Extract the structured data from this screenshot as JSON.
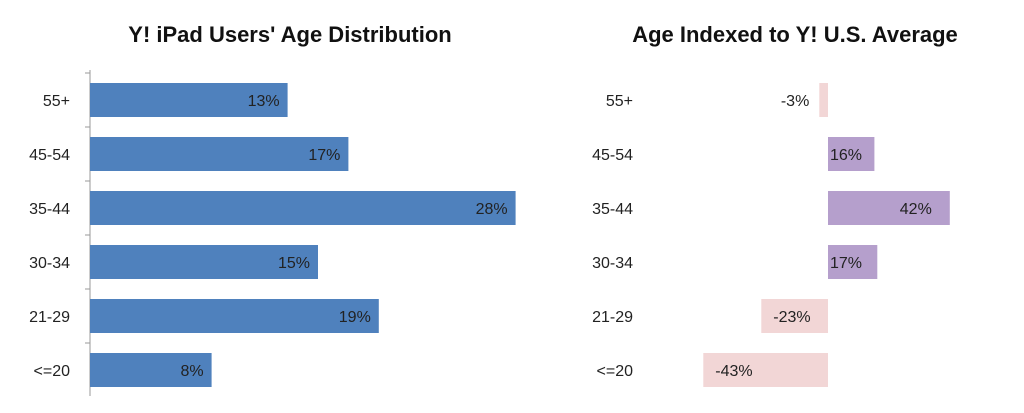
{
  "chart_data": [
    {
      "type": "bar",
      "orientation": "horizontal",
      "title": "Y! iPad Users' Age Distribution",
      "categories": [
        "55+",
        "45-54",
        "35-44",
        "30-34",
        "21-29",
        "<=20"
      ],
      "values": [
        13,
        17,
        28,
        15,
        19,
        8
      ],
      "value_labels": [
        "13%",
        "17%",
        "28%",
        "15%",
        "19%",
        "8%"
      ],
      "color": "#4F81BD"
    },
    {
      "type": "bar",
      "orientation": "horizontal",
      "title": "Age Indexed to Y! U.S. Average",
      "categories": [
        "55+",
        "45-54",
        "35-44",
        "30-34",
        "21-29",
        "<=20"
      ],
      "values": [
        -3,
        16,
        42,
        17,
        -23,
        -43
      ],
      "value_labels": [
        "-3%",
        "16%",
        "42%",
        "17%",
        "-23%",
        "-43%"
      ],
      "positive_color": "#B59FCC",
      "negative_color": "#F2D6D6"
    }
  ]
}
